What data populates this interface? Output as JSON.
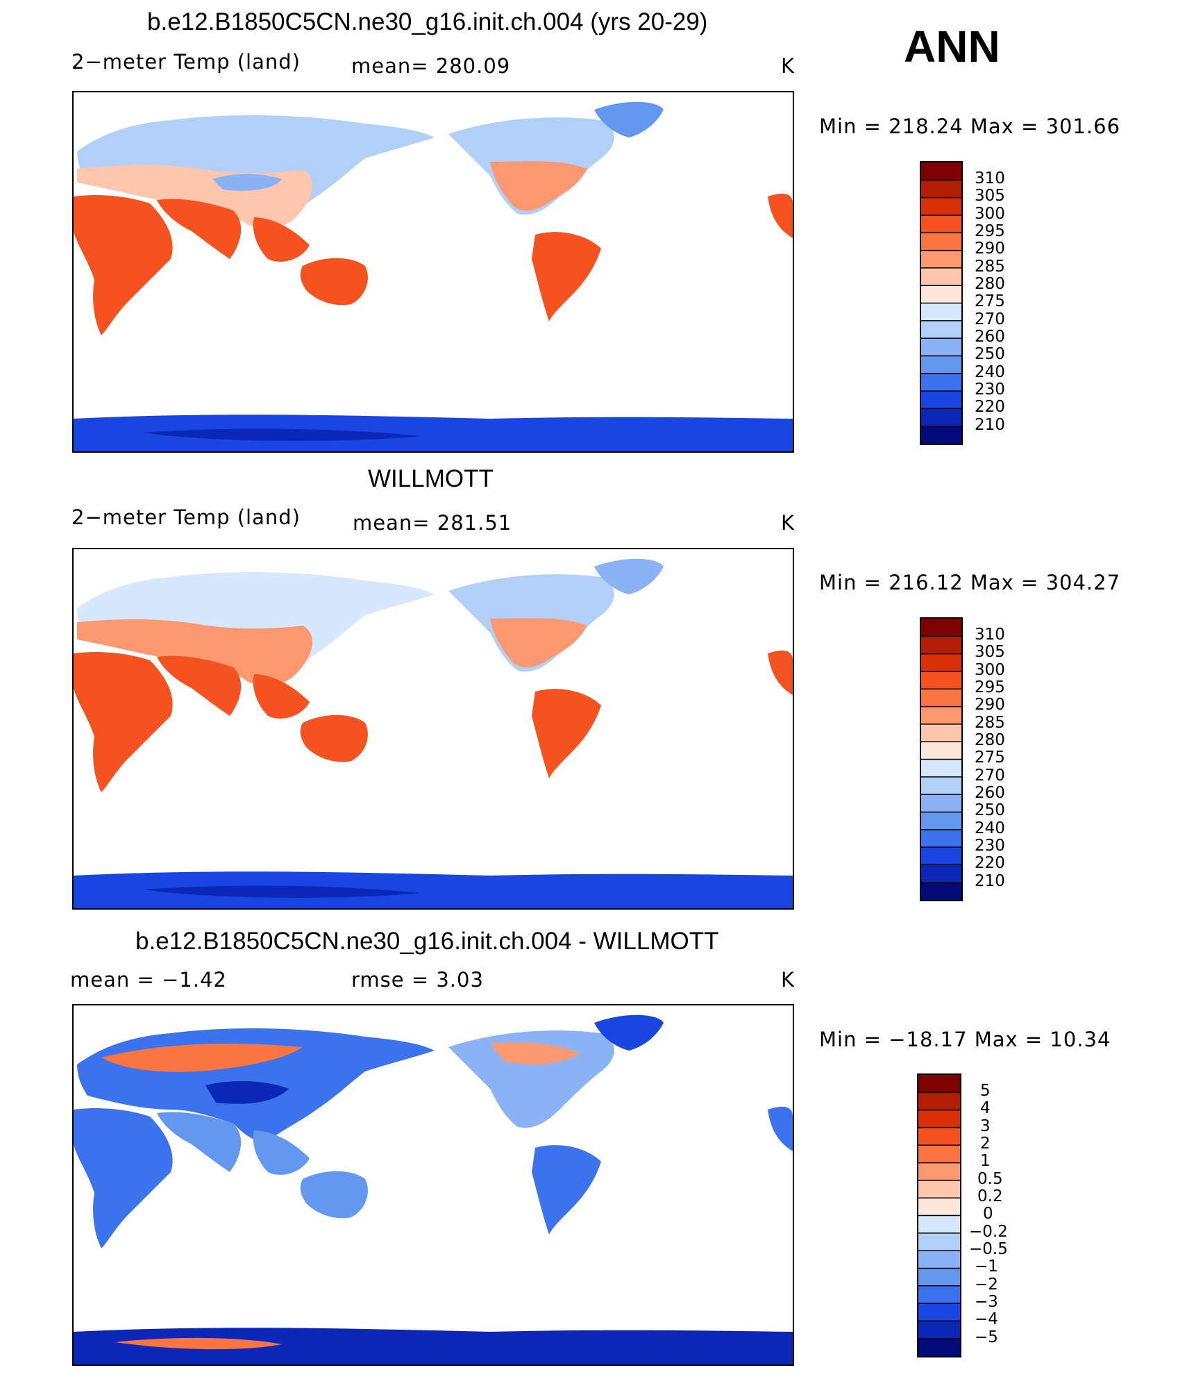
{
  "season_label": "ANN",
  "panels": [
    {
      "title": "b.e12.B1850C5CN.ne30_g16.init.ch.004 (yrs 20-29)",
      "variable": "2−meter Temp (land)",
      "stat": "mean=  280.09",
      "units": "K",
      "minmax": "Min  =  218.24  Max  =  301.66"
    },
    {
      "title": "WILLMOTT",
      "variable": "2−meter Temp (land)",
      "stat": "mean=  281.51",
      "units": "K",
      "minmax": "Min  =  216.12  Max  =  304.27"
    },
    {
      "title": "b.e12.B1850C5CN.ne30_g16.init.ch.004 - WILLMOTT",
      "variable": "mean  =    −1.42",
      "stat": "rmse  =     3.03",
      "units": "K",
      "minmax": "Min  =  −18.17  Max  =    10.34"
    }
  ],
  "chart_data": [
    {
      "type": "heatmap",
      "title": "b.e12.B1850C5CN.ne30_g16.init.ch.004 (yrs 20-29)",
      "subtitle": "2−meter Temp (land)",
      "mean": 280.09,
      "units": "K",
      "min": 218.24,
      "max": 301.66,
      "colorbar_levels": [
        "310",
        "305",
        "300",
        "295",
        "290",
        "285",
        "280",
        "275",
        "270",
        "260",
        "250",
        "240",
        "230",
        "220",
        "210"
      ],
      "colorbar_colors": [
        "#7e0000",
        "#b21e05",
        "#d93008",
        "#f4521f",
        "#fb7543",
        "#fc9870",
        "#fdc6ad",
        "#fde7da",
        "#d6e8fb",
        "#b2cff8",
        "#8bb2f4",
        "#6397f0",
        "#3b73ec",
        "#1946e0",
        "#0a27b8",
        "#030b7a"
      ]
    },
    {
      "type": "heatmap",
      "title": "WILLMOTT",
      "subtitle": "2−meter Temp (land)",
      "mean": 281.51,
      "units": "K",
      "min": 216.12,
      "max": 304.27,
      "colorbar_levels": [
        "310",
        "305",
        "300",
        "295",
        "290",
        "285",
        "280",
        "275",
        "270",
        "260",
        "250",
        "240",
        "230",
        "220",
        "210"
      ],
      "colorbar_colors": [
        "#7e0000",
        "#b21e05",
        "#d93008",
        "#f4521f",
        "#fb7543",
        "#fc9870",
        "#fdc6ad",
        "#fde7da",
        "#d6e8fb",
        "#b2cff8",
        "#8bb2f4",
        "#6397f0",
        "#3b73ec",
        "#1946e0",
        "#0a27b8",
        "#030b7a"
      ]
    },
    {
      "type": "heatmap",
      "title": "b.e12.B1850C5CN.ne30_g16.init.ch.004 - WILLMOTT",
      "mean": -1.42,
      "rmse": 3.03,
      "units": "K",
      "min": -18.17,
      "max": 10.34,
      "colorbar_levels": [
        "5",
        "4",
        "3",
        "2",
        "1",
        "0.5",
        "0.2",
        "0",
        "−0.2",
        "−0.5",
        "−1",
        "−2",
        "−3",
        "−4",
        "−5"
      ],
      "colorbar_colors": [
        "#7e0000",
        "#b21e05",
        "#d93008",
        "#f4521f",
        "#fb7543",
        "#fc9870",
        "#fdc6ad",
        "#fde7da",
        "#d6e8fb",
        "#b2cff8",
        "#8bb2f4",
        "#6397f0",
        "#3b73ec",
        "#1946e0",
        "#0a27b8",
        "#030b7a"
      ]
    }
  ]
}
